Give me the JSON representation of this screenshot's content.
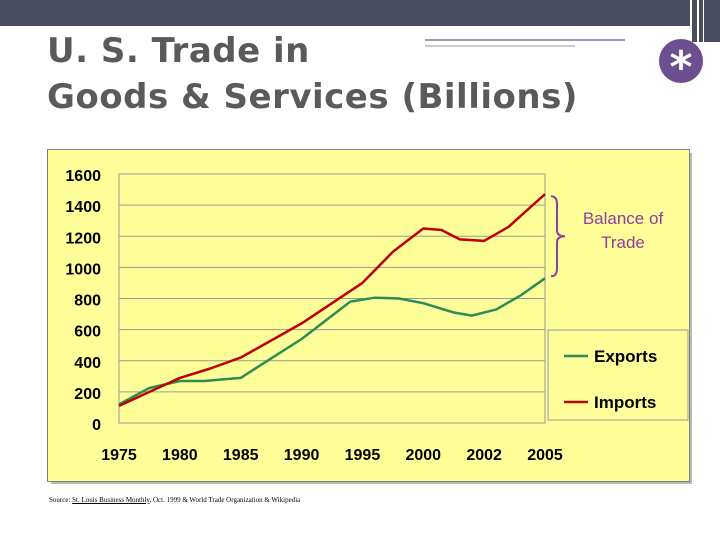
{
  "slide": {
    "title": "U. S. Trade in\nGoods & Services (Billions)",
    "badge_glyph": "*",
    "source_prefix": "Source: ",
    "source_publication": "St. Louis Business Monthly",
    "source_suffix": ", Oct. 1999  & World Trade Organization & Wikipedia",
    "colors": {
      "accent": "#6b4f8f",
      "chart_bg": "#ffff99",
      "bracket": "#8e3e9c"
    }
  },
  "chart_data": {
    "type": "line",
    "categories": [
      "1975",
      "1980",
      "1985",
      "1990",
      "1995",
      "2000",
      "2002",
      "2005"
    ],
    "ylim": [
      0,
      1600
    ],
    "yticks": [
      "0",
      "200",
      "400",
      "600",
      "800",
      "1000",
      "1200",
      "1400",
      "1600"
    ],
    "grid": true,
    "legend_position": "right",
    "series": [
      {
        "name": "Exports",
        "color": "#2e8b57",
        "points": [
          [
            0,
            120
          ],
          [
            0.5,
            225
          ],
          [
            1,
            270
          ],
          [
            1.4,
            270
          ],
          [
            2,
            290
          ],
          [
            3,
            540
          ],
          [
            3.8,
            780
          ],
          [
            4.2,
            805
          ],
          [
            4.6,
            800
          ],
          [
            5,
            770
          ],
          [
            5.5,
            710
          ],
          [
            5.8,
            690
          ],
          [
            6.2,
            730
          ],
          [
            6.6,
            820
          ],
          [
            7,
            930
          ]
        ]
      },
      {
        "name": "Imports",
        "color": "#c00000",
        "points": [
          [
            0,
            110
          ],
          [
            0.5,
            200
          ],
          [
            1,
            290
          ],
          [
            1.5,
            350
          ],
          [
            2,
            420
          ],
          [
            3,
            640
          ],
          [
            4,
            900
          ],
          [
            4.5,
            1100
          ],
          [
            5,
            1250
          ],
          [
            5.3,
            1240
          ],
          [
            5.6,
            1180
          ],
          [
            6,
            1170
          ],
          [
            6.4,
            1260
          ],
          [
            6.8,
            1400
          ],
          [
            7,
            1470
          ]
        ]
      }
    ],
    "annotation": {
      "text_line1": "Balance of",
      "text_line2": "Trade"
    }
  }
}
